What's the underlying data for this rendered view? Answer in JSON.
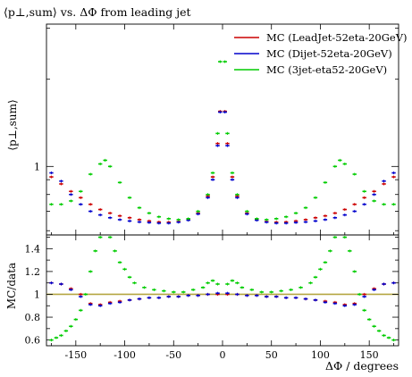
{
  "chart_data": [
    {
      "type": "scatter",
      "title": "⟨p⊥,sum⟩ vs. ΔΦ from leading jet",
      "ylabel": "⟨p⊥,sum⟩",
      "xlim": [
        -180,
        180
      ],
      "ylim": [
        0.58,
        3.1
      ],
      "yscale": "log",
      "y_tick_labels": [
        "1"
      ],
      "y_ticks": [
        1
      ],
      "legend_position": "top-right",
      "series": [
        {
          "name": "MC (LeadJet-52eta-20GeV)",
          "color": "#cc0000",
          "x": [
            -175,
            -165,
            -155,
            -145,
            -135,
            -125,
            -115,
            -105,
            -95,
            -85,
            -75,
            -65,
            -55,
            -45,
            -35,
            -25,
            -15,
            -10,
            -5,
            -2.5,
            2.5,
            5,
            10,
            15,
            25,
            35,
            45,
            55,
            65,
            75,
            85,
            95,
            105,
            115,
            125,
            135,
            145,
            155,
            165,
            175
          ],
          "y": [
            0.92,
            0.87,
            0.82,
            0.78,
            0.74,
            0.71,
            0.69,
            0.675,
            0.665,
            0.655,
            0.648,
            0.643,
            0.642,
            0.645,
            0.655,
            0.69,
            0.79,
            0.92,
            1.2,
            1.55,
            1.55,
            1.2,
            0.92,
            0.79,
            0.69,
            0.655,
            0.645,
            0.642,
            0.643,
            0.648,
            0.655,
            0.665,
            0.675,
            0.69,
            0.71,
            0.74,
            0.78,
            0.82,
            0.87,
            0.92
          ]
        },
        {
          "name": "MC (Dijet-52eta-20GeV)",
          "color": "#0000cc",
          "x": [
            -175,
            -165,
            -155,
            -145,
            -135,
            -125,
            -115,
            -105,
            -95,
            -85,
            -75,
            -65,
            -55,
            -45,
            -35,
            -25,
            -15,
            -10,
            -5,
            -2.5,
            2.5,
            5,
            10,
            15,
            25,
            35,
            45,
            55,
            65,
            75,
            85,
            95,
            105,
            115,
            125,
            135,
            145,
            155,
            165,
            175
          ],
          "y": [
            0.95,
            0.89,
            0.8,
            0.74,
            0.7,
            0.68,
            0.665,
            0.655,
            0.648,
            0.643,
            0.64,
            0.637,
            0.637,
            0.642,
            0.652,
            0.685,
            0.78,
            0.9,
            1.18,
            1.54,
            1.54,
            1.18,
            0.9,
            0.78,
            0.685,
            0.652,
            0.642,
            0.637,
            0.637,
            0.64,
            0.643,
            0.648,
            0.655,
            0.665,
            0.68,
            0.7,
            0.74,
            0.8,
            0.89,
            0.95
          ]
        },
        {
          "name": "MC (3jet-eta52-20GeV)",
          "color": "#00cc00",
          "x": [
            -175,
            -165,
            -155,
            -145,
            -135,
            -125,
            -120,
            -115,
            -105,
            -95,
            -85,
            -75,
            -65,
            -55,
            -45,
            -35,
            -25,
            -15,
            -10,
            -5,
            -2.5,
            2.5,
            5,
            10,
            15,
            25,
            35,
            45,
            55,
            65,
            75,
            85,
            95,
            105,
            115,
            120,
            125,
            135,
            145,
            155,
            165,
            175
          ],
          "y": [
            0.74,
            0.74,
            0.76,
            0.82,
            0.94,
            1.02,
            1.05,
            1.0,
            0.88,
            0.78,
            0.72,
            0.69,
            0.67,
            0.66,
            0.655,
            0.66,
            0.7,
            0.8,
            0.95,
            1.3,
            2.3,
            2.3,
            1.3,
            0.95,
            0.8,
            0.7,
            0.66,
            0.655,
            0.66,
            0.67,
            0.69,
            0.72,
            0.78,
            0.88,
            1.0,
            1.05,
            1.02,
            0.94,
            0.82,
            0.76,
            0.74,
            0.74
          ]
        }
      ]
    },
    {
      "type": "scatter",
      "xlabel": "ΔΦ / degrees",
      "ylabel": "MC/data",
      "xlim": [
        -180,
        180
      ],
      "ylim": [
        0.55,
        1.52
      ],
      "x_ticks": [
        -150,
        -100,
        -50,
        0,
        50,
        100,
        150
      ],
      "x_tick_labels": [
        "-150",
        "-100",
        "-50",
        "0",
        "50",
        "100",
        "150"
      ],
      "y_ticks": [
        0.6,
        0.8,
        1,
        1.2,
        1.4
      ],
      "y_tick_labels": [
        "0.6",
        "0.8",
        "1",
        "1.2",
        "1.4"
      ],
      "reference_line": {
        "y": 1,
        "color": "#b5a642"
      },
      "series": [
        {
          "name": "MC (LeadJet-52eta-20GeV)",
          "color": "#cc0000",
          "x": [
            -175,
            -165,
            -155,
            -145,
            -135,
            -125,
            -115,
            -105,
            -95,
            -85,
            -75,
            -65,
            -55,
            -45,
            -35,
            -25,
            -15,
            -5,
            5,
            15,
            25,
            35,
            45,
            55,
            65,
            75,
            85,
            95,
            105,
            115,
            125,
            135,
            145,
            155,
            165,
            175
          ],
          "y": [
            1.1,
            1.09,
            1.05,
            1.0,
            0.92,
            0.91,
            0.93,
            0.94,
            0.95,
            0.96,
            0.97,
            0.97,
            0.98,
            0.98,
            0.99,
            0.99,
            1.0,
            1.0,
            1.0,
            1.0,
            0.99,
            0.99,
            0.98,
            0.98,
            0.97,
            0.97,
            0.96,
            0.95,
            0.94,
            0.93,
            0.91,
            0.92,
            1.0,
            1.05,
            1.09,
            1.1
          ]
        },
        {
          "name": "MC (Dijet-52eta-20GeV)",
          "color": "#0000cc",
          "x": [
            -175,
            -165,
            -155,
            -145,
            -135,
            -125,
            -115,
            -105,
            -95,
            -85,
            -75,
            -65,
            -55,
            -45,
            -35,
            -25,
            -15,
            -5,
            5,
            15,
            25,
            35,
            45,
            55,
            65,
            75,
            85,
            95,
            105,
            115,
            125,
            135,
            145,
            155,
            165,
            175
          ],
          "y": [
            1.1,
            1.09,
            1.04,
            0.98,
            0.91,
            0.9,
            0.92,
            0.93,
            0.95,
            0.96,
            0.97,
            0.97,
            0.98,
            0.98,
            0.99,
            0.99,
            1.0,
            1.01,
            1.01,
            1.0,
            0.99,
            0.99,
            0.98,
            0.98,
            0.97,
            0.97,
            0.96,
            0.95,
            0.93,
            0.92,
            0.9,
            0.91,
            0.98,
            1.04,
            1.09,
            1.1
          ]
        },
        {
          "name": "MC (3jet-eta52-20GeV)",
          "color": "#00cc00",
          "x": [
            -175,
            -170,
            -165,
            -160,
            -155,
            -150,
            -145,
            -140,
            -135,
            -130,
            -125,
            -120,
            -115,
            -110,
            -105,
            -100,
            -95,
            -90,
            -80,
            -70,
            -60,
            -50,
            -40,
            -30,
            -20,
            -15,
            -10,
            -5,
            5,
            10,
            15,
            20,
            30,
            40,
            50,
            60,
            70,
            80,
            90,
            95,
            100,
            105,
            110,
            115,
            120,
            125,
            130,
            135,
            140,
            145,
            150,
            155,
            160,
            165,
            170,
            175
          ],
          "y": [
            0.6,
            0.62,
            0.64,
            0.68,
            0.72,
            0.78,
            0.86,
            1.0,
            1.2,
            1.38,
            1.5,
            1.55,
            1.5,
            1.38,
            1.28,
            1.22,
            1.15,
            1.1,
            1.06,
            1.04,
            1.03,
            1.02,
            1.02,
            1.04,
            1.06,
            1.1,
            1.12,
            1.09,
            1.09,
            1.12,
            1.1,
            1.06,
            1.04,
            1.02,
            1.02,
            1.03,
            1.04,
            1.06,
            1.1,
            1.15,
            1.22,
            1.28,
            1.38,
            1.5,
            1.55,
            1.5,
            1.38,
            1.2,
            1.0,
            0.86,
            0.78,
            0.72,
            0.68,
            0.64,
            0.62,
            0.6
          ]
        }
      ]
    }
  ]
}
